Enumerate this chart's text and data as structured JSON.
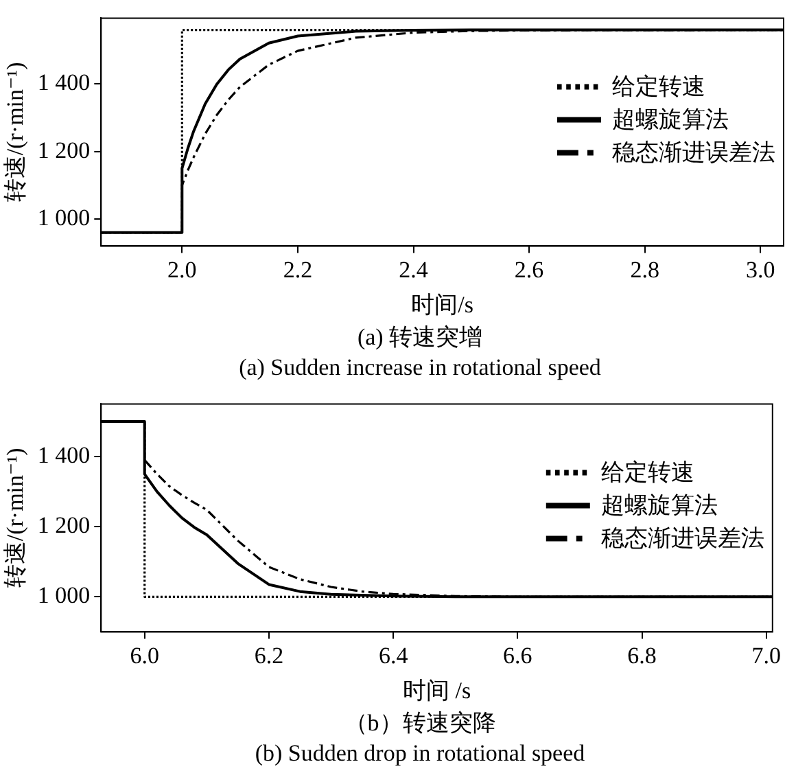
{
  "chart_data": [
    {
      "type": "line",
      "title": "(a) 转速突增",
      "subtitle": "(a) Sudden increase in rotational speed",
      "xlabel": "时间/s",
      "ylabel": "转速/(r·min⁻¹)",
      "xlim": [
        1.86,
        3.04
      ],
      "xticks": [
        {
          "value": 2.0,
          "label": "2.0"
        },
        {
          "value": 2.2,
          "label": "2.2"
        },
        {
          "value": 2.4,
          "label": "2.4"
        },
        {
          "value": 2.6,
          "label": "2.6"
        },
        {
          "value": 2.8,
          "label": "2.8"
        },
        {
          "value": 3.0,
          "label": "3.0"
        }
      ],
      "ylim": [
        920,
        1595
      ],
      "yticks": [
        {
          "value": 1000,
          "label": "1 000"
        },
        {
          "value": 1200,
          "label": "1 200"
        },
        {
          "value": 1400,
          "label": "1 400"
        }
      ],
      "grid": false,
      "legend": "top right",
      "series": [
        {
          "name": "给定转速",
          "color": "#000000",
          "line_style": "dotted",
          "x": [
            1.86,
            2.0,
            2.0,
            3.04
          ],
          "values": [
            960,
            960,
            1560,
            1560
          ]
        },
        {
          "name": "超螺旋算法",
          "color": "#000000",
          "line_style": "solid",
          "x": [
            1.86,
            2.0,
            2.0,
            2.01,
            2.02,
            2.04,
            2.06,
            2.08,
            2.1,
            2.15,
            2.2,
            2.3,
            2.4,
            2.5,
            3.04
          ],
          "values": [
            960,
            960,
            1150,
            1209,
            1260,
            1341,
            1399,
            1442,
            1474,
            1521,
            1542,
            1556,
            1559,
            1560,
            1560
          ]
        },
        {
          "name": "稳态渐进误差法",
          "color": "#000000",
          "line_style": "dashed",
          "x": [
            1.86,
            2.0,
            2.0,
            2.01,
            2.02,
            2.04,
            2.06,
            2.08,
            2.1,
            2.15,
            2.2,
            2.3,
            2.4,
            2.5,
            2.6,
            3.04
          ],
          "values": [
            960,
            960,
            1100,
            1144,
            1183,
            1252,
            1308,
            1353,
            1391,
            1457,
            1498,
            1537,
            1552,
            1557,
            1559,
            1560
          ]
        }
      ]
    },
    {
      "type": "line",
      "title": "（b）转速突降",
      "subtitle": "(b) Sudden drop in rotational speed",
      "xlabel": "时间 /s",
      "ylabel": "转速/(r·min⁻¹)",
      "xlim": [
        5.93,
        7.01
      ],
      "xticks": [
        {
          "value": 6.0,
          "label": "6.0"
        },
        {
          "value": 6.2,
          "label": "6.2"
        },
        {
          "value": 6.4,
          "label": "6.4"
        },
        {
          "value": 6.6,
          "label": "6.6"
        },
        {
          "value": 6.8,
          "label": "6.8"
        },
        {
          "value": 7.0,
          "label": "7.0"
        }
      ],
      "ylim": [
        900,
        1550
      ],
      "yticks": [
        {
          "value": 1000,
          "label": "1 000"
        },
        {
          "value": 1200,
          "label": "1 200"
        },
        {
          "value": 1400,
          "label": "1 400"
        }
      ],
      "grid": false,
      "legend": "top right",
      "series": [
        {
          "name": "给定转速",
          "color": "#000000",
          "line_style": "dotted",
          "x": [
            5.93,
            6.0,
            6.0,
            7.01
          ],
          "values": [
            1500,
            1500,
            1000,
            1000
          ]
        },
        {
          "name": "超螺旋算法",
          "color": "#000000",
          "line_style": "solid",
          "x": [
            5.93,
            6.0,
            6.0,
            6.02,
            6.04,
            6.06,
            6.08,
            6.1,
            6.15,
            6.2,
            6.25,
            6.3,
            6.4,
            6.5,
            7.01
          ],
          "values": [
            1500,
            1500,
            1350,
            1300,
            1260,
            1225,
            1198,
            1177,
            1095,
            1035,
            1015,
            1007,
            1002,
            1000,
            1000
          ]
        },
        {
          "name": "稳态渐进误差法",
          "color": "#000000",
          "line_style": "dashed",
          "x": [
            5.93,
            6.0,
            6.0,
            6.02,
            6.04,
            6.06,
            6.08,
            6.1,
            6.15,
            6.2,
            6.25,
            6.3,
            6.35,
            6.4,
            6.5,
            6.6,
            7.01
          ],
          "values": [
            1500,
            1500,
            1390,
            1350,
            1315,
            1290,
            1268,
            1248,
            1160,
            1085,
            1050,
            1028,
            1015,
            1008,
            1002,
            1000,
            1000
          ]
        }
      ]
    }
  ]
}
